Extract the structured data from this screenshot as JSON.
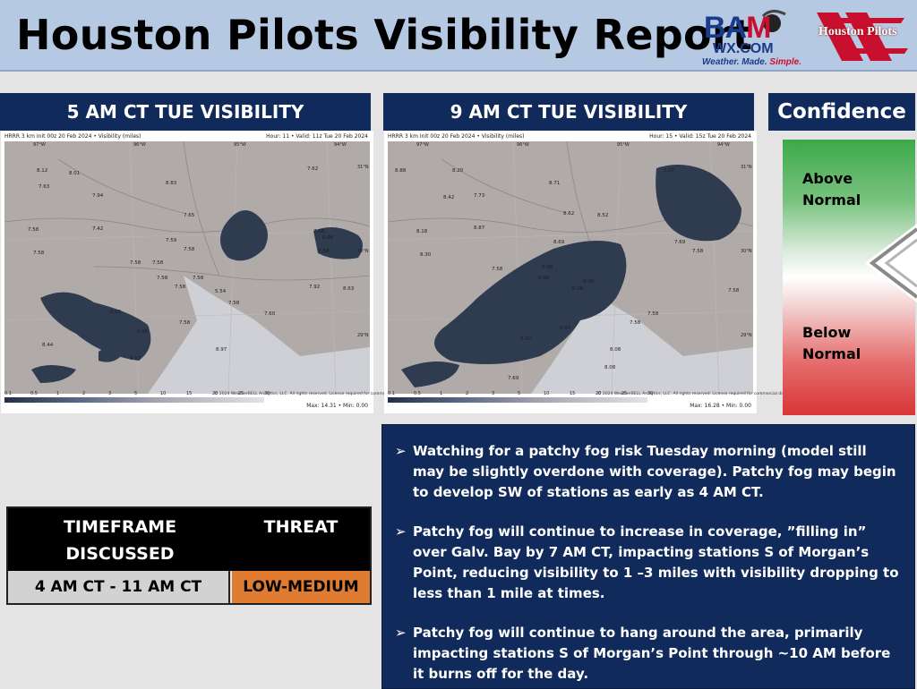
{
  "header": {
    "title": "Houston Pilots Visibility Report",
    "bam_logo": {
      "brand": "BAM",
      "site": "WX.COM",
      "tagline_a": "Weather. Made. ",
      "tagline_b": "Simple."
    },
    "pilots_logo": {
      "text": "Houston Pilots"
    }
  },
  "maps": [
    {
      "heading": "5 AM CT TUE VISIBILITY",
      "caption": "HRRR 3 km Init 00z 20 Feb 2024 • Visibility (miles)",
      "valid": "Hour: 11 • Valid: 11z Tue 20 Feb 2024",
      "lon_labels": [
        "97°W",
        "96°W",
        "95°W",
        "94°W"
      ],
      "lat_labels": [
        "31°N",
        "30°N",
        "29°N"
      ],
      "values": [
        "8.12",
        "8.01",
        "8.83",
        "7.63",
        "7.94",
        "7.42",
        "7.65",
        "7.58",
        "7.59",
        "7.58",
        "7.58",
        "7.58",
        "7.58",
        "7.58",
        "7.58",
        "7.58",
        "0.06",
        "7.58",
        "7.58",
        "0.00",
        "0.06",
        "7.58",
        "7.58",
        "7.60",
        "7.92",
        "8.63",
        "8.97",
        "9.17",
        "8.44",
        "5.54",
        "7.62"
      ],
      "copyright": "© 2024 WeatherBELL Analytics, LLC. All rights reserved. License required for commercial distribution.",
      "colorbar_ticks": [
        "0.1",
        "0.5",
        "1",
        "2",
        "3",
        "5",
        "10",
        "15",
        "20",
        "25",
        "30"
      ],
      "maxmin": "Max: 14.31 • Min: 0.00"
    },
    {
      "heading": "9 AM CT TUE VISIBILITY",
      "caption": "HRRR 3 km Init 00z 20 Feb 2024 • Visibility (miles)",
      "valid": "Hour: 15 • Valid: 15z Tue 20 Feb 2024",
      "lon_labels": [
        "97°W",
        "96°W",
        "95°W",
        "94°W"
      ],
      "lat_labels": [
        "31°N",
        "30°N",
        "29°N"
      ],
      "values": [
        "8.88",
        "8.20",
        "8.71",
        "8.42",
        "7.73",
        "8.62",
        "8.52",
        "0.07",
        "8.18",
        "8.87",
        "8.69",
        "8.30",
        "7.58",
        "7.69",
        "7.58",
        "0.06",
        "0.06",
        "0.00",
        "0.06",
        "7.58",
        "0.02",
        "0.07",
        "7.58",
        "8.08",
        "8.08",
        "7.69",
        "7.58"
      ],
      "copyright": "© 2024 WeatherBELL Analytics, LLC. All rights reserved. License required for commercial distribution.",
      "colorbar_ticks": [
        "0.1",
        "0.5",
        "1",
        "2",
        "3",
        "5",
        "10",
        "15",
        "20",
        "25",
        "30"
      ],
      "maxmin": "Max: 16.28 • Min: 0.00"
    }
  ],
  "confidence": {
    "heading": "Confidence",
    "above_line1": "Above",
    "above_line2": "Normal",
    "below_line1": "Below",
    "below_line2": "Normal",
    "level": "near normal"
  },
  "threat_table": {
    "col1_header_line1": "TIMEFRAME",
    "col1_header_line2": "DISCUSSED",
    "col2_header": "THREAT",
    "timeframe": "4 AM CT - 11 AM CT",
    "threat": "LOW-MEDIUM",
    "threat_color": "#e07b32"
  },
  "notes": [
    "Watching for a patchy fog risk Tuesday morning (model still may be slightly overdone with coverage). Patchy fog may begin to develop SW of stations as early as 4 AM CT.",
    "Patchy fog will continue to increase in coverage, ”filling in” over Galv. Bay by 7 AM CT, impacting stations S of Morgan’s Point, reducing visibility to 1 –3 miles with visibility dropping to less than 1 mile at times.",
    "Patchy fog will continue to hang around the area, primarily impacting stations S of Morgan’s Point through ~10 AM before it burns off for the day."
  ]
}
